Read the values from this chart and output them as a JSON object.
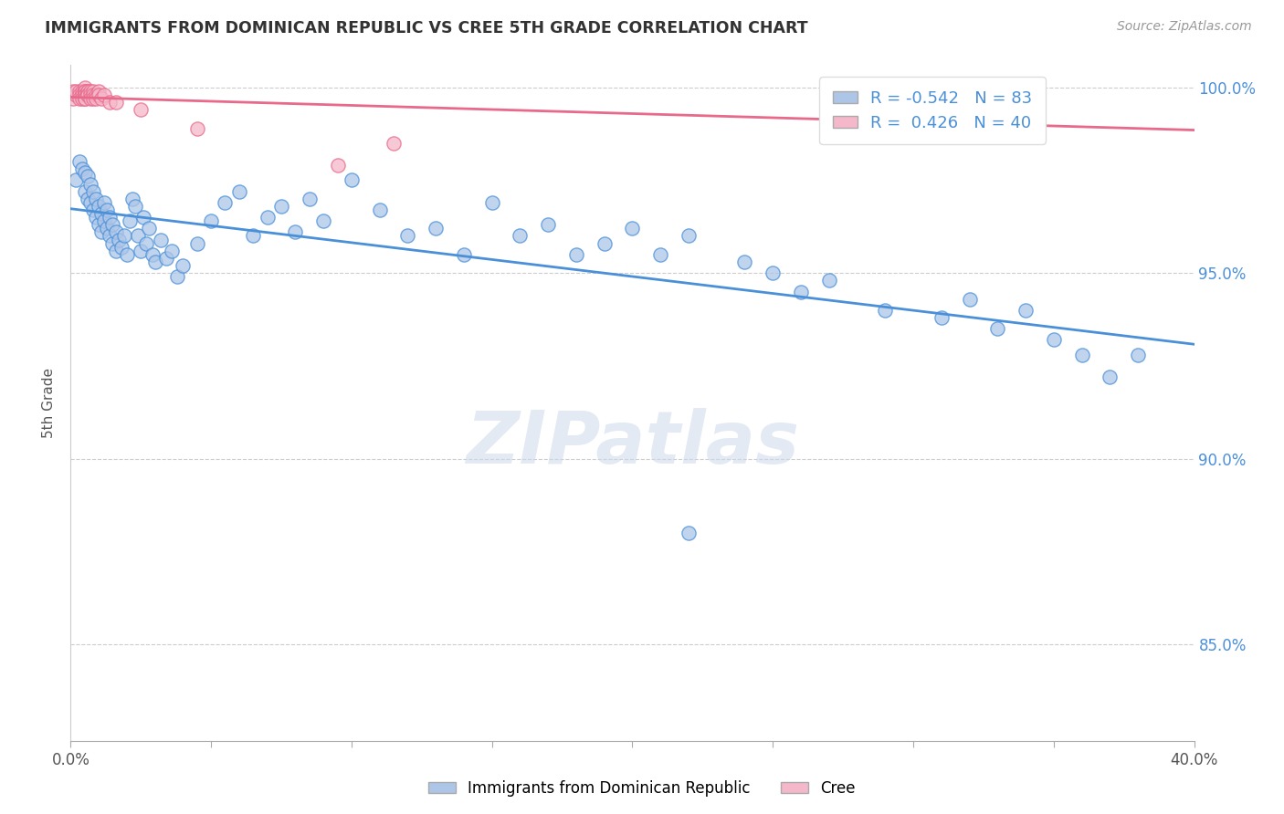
{
  "title": "IMMIGRANTS FROM DOMINICAN REPUBLIC VS CREE 5TH GRADE CORRELATION CHART",
  "source": "Source: ZipAtlas.com",
  "ylabel": "5th Grade",
  "yticks": [
    85.0,
    90.0,
    95.0,
    100.0
  ],
  "ytick_labels": [
    "85.0%",
    "90.0%",
    "95.0%",
    "100.0%"
  ],
  "blue_R": -0.542,
  "blue_N": 83,
  "pink_R": 0.426,
  "pink_N": 40,
  "blue_color": "#adc6e8",
  "pink_color": "#f5b8ca",
  "blue_line_color": "#4a90d9",
  "pink_line_color": "#e8698a",
  "legend_label_blue": "Immigrants from Dominican Republic",
  "legend_label_pink": "Cree",
  "watermark": "ZIPatlas",
  "xmin": 0.0,
  "xmax": 0.4,
  "ymin": 0.824,
  "ymax": 1.006,
  "blue_scatter_x": [
    0.002,
    0.003,
    0.004,
    0.005,
    0.005,
    0.006,
    0.006,
    0.007,
    0.007,
    0.008,
    0.008,
    0.009,
    0.009,
    0.01,
    0.01,
    0.011,
    0.011,
    0.012,
    0.012,
    0.013,
    0.013,
    0.014,
    0.014,
    0.015,
    0.015,
    0.016,
    0.016,
    0.017,
    0.018,
    0.019,
    0.02,
    0.021,
    0.022,
    0.023,
    0.024,
    0.025,
    0.026,
    0.027,
    0.028,
    0.029,
    0.03,
    0.032,
    0.034,
    0.036,
    0.038,
    0.04,
    0.045,
    0.05,
    0.055,
    0.06,
    0.065,
    0.07,
    0.075,
    0.08,
    0.085,
    0.09,
    0.1,
    0.11,
    0.12,
    0.13,
    0.14,
    0.15,
    0.16,
    0.17,
    0.18,
    0.19,
    0.2,
    0.21,
    0.22,
    0.24,
    0.25,
    0.26,
    0.27,
    0.29,
    0.31,
    0.32,
    0.33,
    0.34,
    0.35,
    0.36,
    0.37,
    0.38,
    0.22
  ],
  "blue_scatter_y": [
    0.975,
    0.98,
    0.978,
    0.977,
    0.972,
    0.976,
    0.97,
    0.974,
    0.969,
    0.972,
    0.967,
    0.97,
    0.965,
    0.968,
    0.963,
    0.966,
    0.961,
    0.969,
    0.964,
    0.967,
    0.962,
    0.96,
    0.965,
    0.958,
    0.963,
    0.956,
    0.961,
    0.959,
    0.957,
    0.96,
    0.955,
    0.964,
    0.97,
    0.968,
    0.96,
    0.956,
    0.965,
    0.958,
    0.962,
    0.955,
    0.953,
    0.959,
    0.954,
    0.956,
    0.949,
    0.952,
    0.958,
    0.964,
    0.969,
    0.972,
    0.96,
    0.965,
    0.968,
    0.961,
    0.97,
    0.964,
    0.975,
    0.967,
    0.96,
    0.962,
    0.955,
    0.969,
    0.96,
    0.963,
    0.955,
    0.958,
    0.962,
    0.955,
    0.96,
    0.953,
    0.95,
    0.945,
    0.948,
    0.94,
    0.938,
    0.943,
    0.935,
    0.94,
    0.932,
    0.928,
    0.922,
    0.928,
    0.88
  ],
  "pink_scatter_x": [
    0.001,
    0.001,
    0.002,
    0.002,
    0.003,
    0.003,
    0.003,
    0.004,
    0.004,
    0.004,
    0.005,
    0.005,
    0.005,
    0.005,
    0.005,
    0.005,
    0.005,
    0.006,
    0.006,
    0.006,
    0.006,
    0.007,
    0.007,
    0.007,
    0.008,
    0.008,
    0.008,
    0.009,
    0.009,
    0.01,
    0.01,
    0.011,
    0.012,
    0.014,
    0.016,
    0.025,
    0.045,
    0.095,
    0.115,
    0.31
  ],
  "pink_scatter_y": [
    0.997,
    0.999,
    0.998,
    0.999,
    0.999,
    0.998,
    0.997,
    0.999,
    0.998,
    0.997,
    1.0,
    0.999,
    0.999,
    0.998,
    0.998,
    0.997,
    0.997,
    0.999,
    0.999,
    0.998,
    0.998,
    0.999,
    0.998,
    0.997,
    0.999,
    0.998,
    0.997,
    0.998,
    0.997,
    0.999,
    0.998,
    0.997,
    0.998,
    0.996,
    0.996,
    0.994,
    0.989,
    0.979,
    0.985,
    1.0
  ]
}
